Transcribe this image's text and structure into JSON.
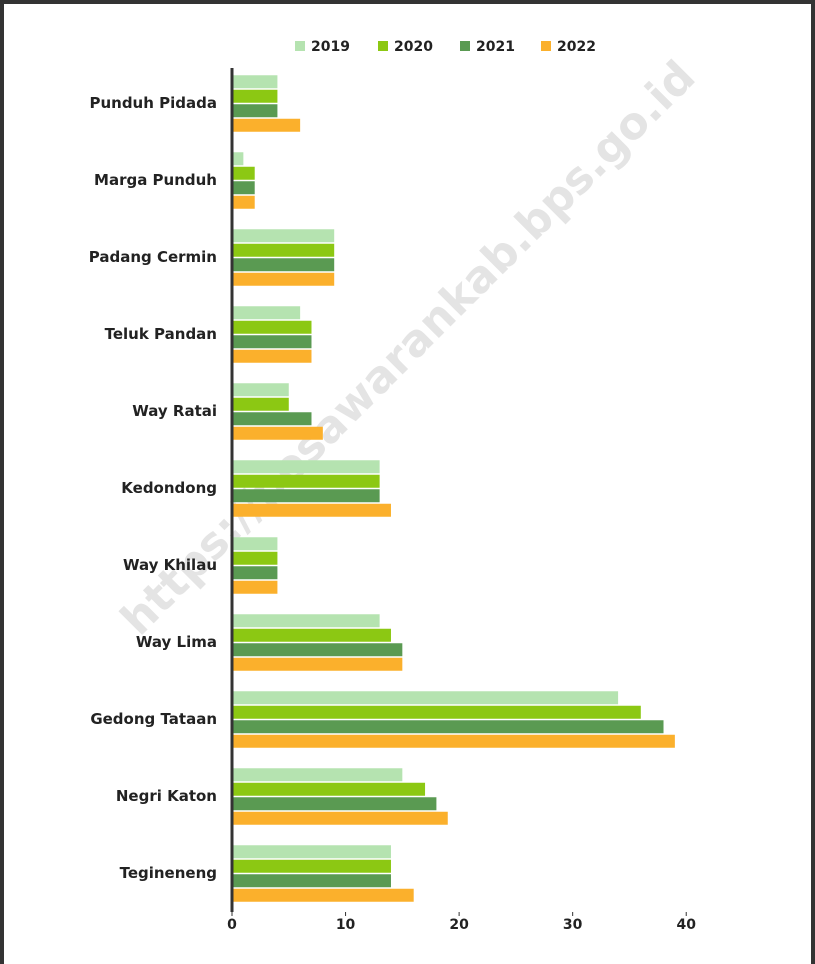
{
  "chart_data": {
    "type": "bar",
    "orientation": "horizontal",
    "watermark": "https://pesawarankab.bps.go.id",
    "categories": [
      "Punduh Pidada",
      "Marga Punduh",
      "Padang Cermin",
      "Teluk Pandan",
      "Way Ratai",
      "Kedondong",
      "Way Khilau",
      "Way Lima",
      "Gedong Tataan",
      "Negri Katon",
      "Tegineneng"
    ],
    "series": [
      {
        "name": "2019",
        "color": "#b5e3b0",
        "values": [
          4,
          1,
          9,
          6,
          5,
          13,
          4,
          13,
          34,
          15,
          14
        ]
      },
      {
        "name": "2020",
        "color": "#8cc813",
        "values": [
          4,
          2,
          9,
          7,
          5,
          13,
          4,
          14,
          36,
          17,
          14
        ]
      },
      {
        "name": "2021",
        "color": "#5a9a52",
        "values": [
          4,
          2,
          9,
          7,
          7,
          13,
          4,
          15,
          38,
          18,
          14
        ]
      },
      {
        "name": "2022",
        "color": "#fbb02c",
        "values": [
          6,
          2,
          9,
          7,
          8,
          14,
          4,
          15,
          39,
          19,
          16
        ]
      }
    ],
    "xlim": [
      0,
      45
    ],
    "xticks": [
      0,
      10,
      20,
      30,
      40
    ],
    "legend": "top"
  }
}
